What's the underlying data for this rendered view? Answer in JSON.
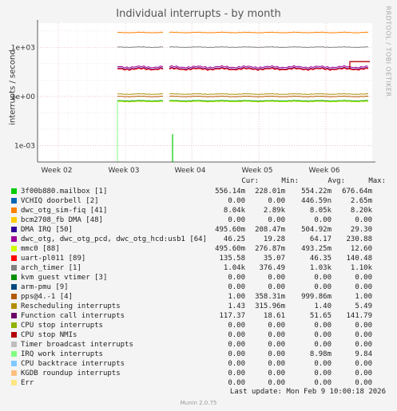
{
  "chart_data": {
    "type": "line",
    "title": "Individual interrupts - by month",
    "ylabel": "interrupts / second",
    "yscale": "log",
    "ylim": [
      0.0001,
      30000
    ],
    "yticks": [
      "1e+03",
      "1e+00",
      "1e-03"
    ],
    "xticks": [
      "Week 02",
      "Week 03",
      "Week 04",
      "Week 05",
      "Week 06"
    ],
    "grid": true,
    "watermark": "RRDTOOL / TOBI OETIKER",
    "legend_columns": [
      "Cur:",
      "Min:",
      "Avg:",
      "Max:"
    ],
    "series": [
      {
        "name": "3f00b880.mailbox [1]",
        "color": "#00cc00",
        "cur": "556.14m",
        "min": "228.01m",
        "avg": "554.22m",
        "max": "676.64m",
        "level": 0.55
      },
      {
        "name": "VCHIQ doorbell [2]",
        "color": "#0066b3",
        "cur": "0.00",
        "min": "0.00",
        "avg": "446.59n",
        "max": "2.65m",
        "level": null
      },
      {
        "name": "dwc_otg_sim-fiq [41]",
        "color": "#ff8000",
        "cur": "8.04k",
        "min": "2.89k",
        "avg": "8.05k",
        "max": "8.20k",
        "level": 8050
      },
      {
        "name": "bcm2708_fb DMA [48]",
        "color": "#ffcc00",
        "cur": "0.00",
        "min": "0.00",
        "avg": "0.00",
        "max": "0.00",
        "level": null
      },
      {
        "name": "DMA IRQ [50]",
        "color": "#330099",
        "cur": "495.60m",
        "min": "208.47m",
        "avg": "504.92m",
        "max": "29.30",
        "level": 0.5
      },
      {
        "name": "dwc_otg, dwc_otg_pcd, dwc_otg_hcd:usb1 [64]",
        "color": "#990099",
        "cur": "46.25",
        "min": "19.28",
        "avg": "64.17",
        "max": "230.88",
        "level": 64
      },
      {
        "name": "mmc0 [88]",
        "color": "#ccff00",
        "cur": "495.60m",
        "min": "276.87m",
        "avg": "493.25m",
        "max": "12.60",
        "level": 0.49
      },
      {
        "name": "uart-pl011 [89]",
        "color": "#ff0000",
        "cur": "135.58",
        "min": "35.07",
        "avg": "46.35",
        "max": "140.48",
        "level": 46
      },
      {
        "name": "arch_timer [1]",
        "color": "#808080",
        "cur": "1.04k",
        "min": "376.49",
        "avg": "1.03k",
        "max": "1.10k",
        "level": 1030
      },
      {
        "name": "kvm guest vtimer [3]",
        "color": "#008f00",
        "cur": "0.00",
        "min": "0.00",
        "avg": "0.00",
        "max": "0.00",
        "level": null
      },
      {
        "name": "arm-pmu [9]",
        "color": "#00487d",
        "cur": "0.00",
        "min": "0.00",
        "avg": "0.00",
        "max": "0.00",
        "level": null
      },
      {
        "name": "pps@4.-1 [4]",
        "color": "#b35a00",
        "cur": "1.00",
        "min": "358.31m",
        "avg": "999.86m",
        "max": "1.00",
        "level": 1.0
      },
      {
        "name": "Rescheduling interrupts",
        "color": "#b38f00",
        "cur": "1.43",
        "min": "315.96m",
        "avg": "1.40",
        "max": "5.49",
        "level": 1.4
      },
      {
        "name": "Function call interrupts",
        "color": "#6b006b",
        "cur": "117.37",
        "min": "18.61",
        "avg": "51.65",
        "max": "141.79",
        "level": 52
      },
      {
        "name": "CPU stop interrupts",
        "color": "#8fb300",
        "cur": "0.00",
        "min": "0.00",
        "avg": "0.00",
        "max": "0.00",
        "level": null
      },
      {
        "name": "CPU stop NMIs",
        "color": "#b30000",
        "cur": "0.00",
        "min": "0.00",
        "avg": "0.00",
        "max": "0.00",
        "level": null
      },
      {
        "name": "Timer broadcast interrupts",
        "color": "#bebebe",
        "cur": "0.00",
        "min": "0.00",
        "avg": "0.00",
        "max": "0.00",
        "level": null
      },
      {
        "name": "IRQ work interrupts",
        "color": "#80ff80",
        "cur": "0.00",
        "min": "0.00",
        "avg": "8.98m",
        "max": "9.84",
        "level": null
      },
      {
        "name": "CPU backtrace interrupts",
        "color": "#80c9ff",
        "cur": "0.00",
        "min": "0.00",
        "avg": "0.00",
        "max": "0.00",
        "level": null
      },
      {
        "name": "KGDB roundup interrupts",
        "color": "#ffc080",
        "cur": "0.00",
        "min": "0.00",
        "avg": "0.00",
        "max": "0.00",
        "level": null
      },
      {
        "name": "Err",
        "color": "#ffe680",
        "cur": "0.00",
        "min": "0.00",
        "avg": "0.00",
        "max": "0.00",
        "level": null
      }
    ]
  },
  "footer": {
    "last_update": "Last update: Mon Feb  9 10:00:18 2026",
    "generator": "Munin 2.0.75"
  }
}
